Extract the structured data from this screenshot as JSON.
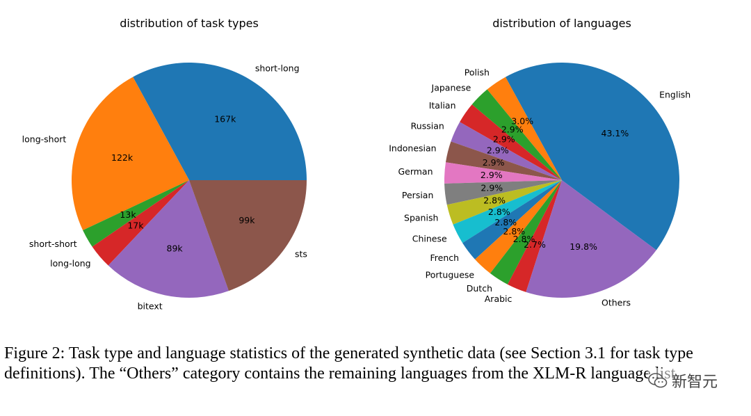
{
  "chart_data": [
    {
      "type": "pie",
      "title": "distribution of task types",
      "start_angle_deg": 0,
      "direction": "counterclockwise",
      "slices": [
        {
          "label": "short-long",
          "value": 167,
          "value_label": "167k",
          "color": "#1f77b4"
        },
        {
          "label": "long-short",
          "value": 122,
          "value_label": "122k",
          "color": "#ff7f0e"
        },
        {
          "label": "short-short",
          "value": 13,
          "value_label": "13k",
          "color": "#2ca02c"
        },
        {
          "label": "long-long",
          "value": 17,
          "value_label": "17k",
          "color": "#d62728"
        },
        {
          "label": "bitext",
          "value": 89,
          "value_label": "89k",
          "color": "#9467bd"
        },
        {
          "label": "sts",
          "value": 99,
          "value_label": "99k",
          "color": "#8c564b"
        }
      ]
    },
    {
      "type": "pie",
      "title": "distribution of languages",
      "start_angle_deg": -36.5,
      "direction": "counterclockwise",
      "slices": [
        {
          "label": "English",
          "value": 43.1,
          "value_label": "43.1%",
          "color": "#1f77b4"
        },
        {
          "label": "Polish",
          "value": 3.0,
          "value_label": "3.0%",
          "color": "#ff7f0e"
        },
        {
          "label": "Japanese",
          "value": 2.9,
          "value_label": "2.9%",
          "color": "#2ca02c"
        },
        {
          "label": "Italian",
          "value": 2.9,
          "value_label": "2.9%",
          "color": "#d62728"
        },
        {
          "label": "Russian",
          "value": 2.9,
          "value_label": "2.9%",
          "color": "#9467bd"
        },
        {
          "label": "Indonesian",
          "value": 2.9,
          "value_label": "2.9%",
          "color": "#8c564b"
        },
        {
          "label": "German",
          "value": 2.9,
          "value_label": "2.9%",
          "color": "#e377c2"
        },
        {
          "label": "Persian",
          "value": 2.9,
          "value_label": "2.9%",
          "color": "#7f7f7f"
        },
        {
          "label": "Spanish",
          "value": 2.8,
          "value_label": "2.8%",
          "color": "#bcbd22"
        },
        {
          "label": "Chinese",
          "value": 2.8,
          "value_label": "2.8%",
          "color": "#17becf"
        },
        {
          "label": "French",
          "value": 2.8,
          "value_label": "2.8%",
          "color": "#1f77b4"
        },
        {
          "label": "Portuguese",
          "value": 2.8,
          "value_label": "2.8%",
          "color": "#ff7f0e"
        },
        {
          "label": "Dutch",
          "value": 2.8,
          "value_label": "2.8%",
          "color": "#2ca02c"
        },
        {
          "label": "Arabic",
          "value": 2.7,
          "value_label": "2.7%",
          "color": "#d62728"
        },
        {
          "label": "Others",
          "value": 19.8,
          "value_label": "19.8%",
          "color": "#9467bd"
        }
      ]
    }
  ],
  "caption": {
    "text": "Figure 2: Task type and language statistics of the generated synthetic data (see Section 3.1 for task type definitions). The “Others” category contains the remaining languages from the XLM-R language list."
  },
  "watermark": {
    "text": "新智元",
    "icon": "wechat-icon"
  }
}
